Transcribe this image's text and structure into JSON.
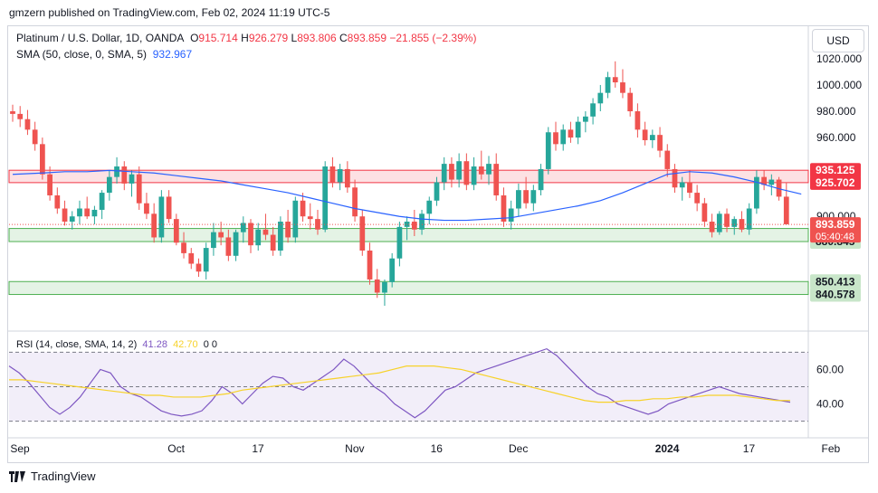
{
  "header": {
    "text": "gmzern published on TradingView.com, Feb 02, 2024 11:19 UTC-5"
  },
  "legend": {
    "symbol": "Platinum / U.S. Dollar, 1D, OANDA",
    "o_label": "O",
    "o": "915.714",
    "h_label": "H",
    "h": "926.279",
    "l_label": "L",
    "l": "893.806",
    "c_label": "C",
    "c": "893.859",
    "change": "−21.855 (−2.39%)",
    "sma_label": "SMA (50, close, 0, SMA, 5)",
    "sma_value": "932.967",
    "rsi_label": "RSI (14, close, SMA, 14, 2)",
    "rsi_value": "41.28",
    "rsi_sma_value": "42.70",
    "rsi_tail": "0 0"
  },
  "currency_button": "USD",
  "footer": {
    "brand": "TradingView"
  },
  "colors": {
    "up": "#26a69a",
    "down": "#ef5350",
    "sma": "#2962ff",
    "rsi": "#7e57c2",
    "rsi_sma": "#f7d22a",
    "resistance": "#f23645",
    "support": "#4caf50"
  },
  "chart_data": [
    {
      "type": "candlestick",
      "title": "Platinum / U.S. Dollar, 1D, OANDA",
      "y_axis": {
        "ticks": [
          "1020.000",
          "1000.000",
          "980.000",
          "960.000",
          "900.000"
        ],
        "range": [
          832,
          1022
        ],
        "currency": "USD"
      },
      "x_axis": {
        "ticks": [
          {
            "label": "Sep",
            "i": 0
          },
          {
            "label": "Oct",
            "i": 21
          },
          {
            "label": "17",
            "i": 32
          },
          {
            "label": "Nov",
            "i": 45
          },
          {
            "label": "16",
            "i": 56
          },
          {
            "label": "Dec",
            "i": 67
          },
          {
            "label": "2024",
            "i": 87
          },
          {
            "label": "17",
            "i": 98
          },
          {
            "label": "Feb",
            "i": 109
          }
        ]
      },
      "resistance_zone": {
        "low": 925.702,
        "high": 935.125,
        "labels": [
          "935.125",
          "925.702"
        ]
      },
      "support_zones": [
        {
          "low": 880.845,
          "high": 890.802,
          "labels": [
            "890.802",
            "880.845"
          ]
        },
        {
          "low": 840.578,
          "high": 850.413,
          "labels": [
            "850.413",
            "840.578"
          ]
        }
      ],
      "last_price": {
        "value": 893.859,
        "label": "893.859",
        "countdown": "05:40:48"
      },
      "candles": [
        [
          980,
          985,
          972,
          978
        ],
        [
          978,
          984,
          968,
          974
        ],
        [
          974,
          981,
          962,
          966
        ],
        [
          966,
          972,
          950,
          955
        ],
        [
          955,
          960,
          928,
          932
        ],
        [
          932,
          938,
          912,
          916
        ],
        [
          916,
          922,
          902,
          906
        ],
        [
          906,
          912,
          893,
          896
        ],
        [
          896,
          904,
          890,
          900
        ],
        [
          900,
          912,
          894,
          906
        ],
        [
          906,
          915,
          898,
          900
        ],
        [
          900,
          908,
          894,
          905
        ],
        [
          905,
          920,
          898,
          918
        ],
        [
          918,
          935,
          912,
          930
        ],
        [
          930,
          945,
          925,
          938
        ],
        [
          938,
          942,
          920,
          925
        ],
        [
          925,
          935,
          915,
          932
        ],
        [
          932,
          938,
          905,
          910
        ],
        [
          910,
          918,
          898,
          902
        ],
        [
          902,
          910,
          880,
          884
        ],
        [
          884,
          920,
          880,
          915
        ],
        [
          915,
          920,
          895,
          898
        ],
        [
          898,
          902,
          878,
          880
        ],
        [
          880,
          888,
          868,
          872
        ],
        [
          872,
          876,
          860,
          864
        ],
        [
          864,
          868,
          854,
          858
        ],
        [
          858,
          880,
          852,
          876
        ],
        [
          876,
          895,
          870,
          888
        ],
        [
          888,
          896,
          878,
          884
        ],
        [
          884,
          890,
          866,
          870
        ],
        [
          870,
          890,
          866,
          888
        ],
        [
          888,
          900,
          880,
          895
        ],
        [
          895,
          898,
          872,
          878
        ],
        [
          878,
          895,
          874,
          890
        ],
        [
          890,
          902,
          882,
          886
        ],
        [
          886,
          892,
          870,
          874
        ],
        [
          874,
          900,
          870,
          896
        ],
        [
          896,
          905,
          880,
          884
        ],
        [
          884,
          915,
          880,
          912
        ],
        [
          912,
          918,
          896,
          900
        ],
        [
          900,
          910,
          890,
          898
        ],
        [
          898,
          905,
          886,
          890
        ],
        [
          890,
          942,
          888,
          938
        ],
        [
          938,
          945,
          922,
          926
        ],
        [
          926,
          940,
          920,
          936
        ],
        [
          936,
          942,
          918,
          922
        ],
        [
          922,
          928,
          896,
          900
        ],
        [
          900,
          905,
          870,
          874
        ],
        [
          874,
          880,
          848,
          852
        ],
        [
          852,
          860,
          838,
          842
        ],
        [
          842,
          852,
          832,
          850
        ],
        [
          850,
          872,
          846,
          868
        ],
        [
          868,
          896,
          862,
          892
        ],
        [
          892,
          900,
          882,
          896
        ],
        [
          896,
          905,
          885,
          890
        ],
        [
          890,
          905,
          886,
          902
        ],
        [
          902,
          915,
          894,
          912
        ],
        [
          912,
          930,
          908,
          926
        ],
        [
          926,
          945,
          920,
          940
        ],
        [
          940,
          945,
          922,
          928
        ],
        [
          928,
          948,
          922,
          942
        ],
        [
          942,
          948,
          920,
          924
        ],
        [
          924,
          945,
          920,
          938
        ],
        [
          938,
          950,
          928,
          932
        ],
        [
          932,
          946,
          924,
          940
        ],
        [
          940,
          948,
          912,
          916
        ],
        [
          916,
          922,
          892,
          896
        ],
        [
          896,
          912,
          890,
          906
        ],
        [
          906,
          925,
          900,
          920
        ],
        [
          920,
          930,
          906,
          910
        ],
        [
          910,
          924,
          904,
          920
        ],
        [
          920,
          940,
          916,
          936
        ],
        [
          936,
          968,
          932,
          964
        ],
        [
          964,
          972,
          950,
          955
        ],
        [
          955,
          970,
          950,
          966
        ],
        [
          966,
          972,
          956,
          960
        ],
        [
          960,
          976,
          955,
          972
        ],
        [
          972,
          980,
          964,
          976
        ],
        [
          976,
          990,
          970,
          986
        ],
        [
          986,
          1000,
          980,
          994
        ],
        [
          994,
          1010,
          990,
          1006
        ],
        [
          1006,
          1018,
          998,
          1002
        ],
        [
          1002,
          1012,
          990,
          994
        ],
        [
          994,
          998,
          976,
          980
        ],
        [
          980,
          986,
          960,
          966
        ],
        [
          966,
          972,
          954,
          958
        ],
        [
          958,
          966,
          952,
          962
        ],
        [
          962,
          968,
          945,
          950
        ],
        [
          950,
          955,
          930,
          936
        ],
        [
          936,
          940,
          918,
          922
        ],
        [
          922,
          930,
          912,
          926
        ],
        [
          926,
          935,
          914,
          918
        ],
        [
          918,
          924,
          904,
          910
        ],
        [
          910,
          914,
          892,
          896
        ],
        [
          896,
          902,
          884,
          888
        ],
        [
          888,
          904,
          886,
          902
        ],
        [
          902,
          906,
          888,
          892
        ],
        [
          892,
          900,
          886,
          898
        ],
        [
          898,
          904,
          888,
          890
        ],
        [
          890,
          910,
          886,
          906
        ],
        [
          906,
          935,
          902,
          930
        ],
        [
          930,
          935,
          920,
          924
        ],
        [
          924,
          932,
          916,
          928
        ],
        [
          928,
          930,
          912,
          915
        ],
        [
          915,
          926,
          894,
          894
        ]
      ],
      "sma": [
        932,
        933,
        934,
        934,
        935,
        934,
        933,
        931,
        929,
        927,
        924,
        921,
        918,
        914,
        910,
        906,
        903,
        900,
        898,
        897,
        897,
        898,
        899,
        902,
        905,
        908,
        912,
        918,
        925,
        932,
        934,
        933,
        930,
        926,
        921,
        917
      ],
      "sma_x": [
        0,
        4,
        7,
        10,
        13,
        16,
        19,
        22,
        25,
        28,
        31,
        34,
        37,
        40,
        43,
        46,
        49,
        52,
        55,
        58,
        61,
        64,
        67,
        70,
        73,
        76,
        79,
        82,
        85,
        88,
        91,
        94,
        97,
        100,
        103,
        106
      ]
    },
    {
      "type": "line",
      "title": "RSI (14, close, SMA, 14, 2)",
      "y_axis": {
        "ticks": [
          "60.00",
          "40.00"
        ],
        "range": [
          24,
          76
        ],
        "bands": [
          30,
          50,
          70
        ]
      },
      "series": [
        {
          "name": "RSI",
          "values": [
            62,
            58,
            52,
            45,
            38,
            34,
            38,
            44,
            52,
            60,
            58,
            50,
            46,
            44,
            40,
            36,
            34,
            33,
            34,
            36,
            42,
            50,
            46,
            40,
            46,
            52,
            56,
            55,
            50,
            48,
            52,
            56,
            60,
            66,
            62,
            56,
            50,
            46,
            40,
            36,
            32,
            36,
            42,
            48,
            50,
            54,
            58,
            60,
            62,
            64,
            66,
            68,
            70,
            72,
            68,
            62,
            56,
            50,
            46,
            44,
            40,
            38,
            36,
            34,
            36,
            40,
            42,
            44,
            46,
            48,
            50,
            48,
            46,
            45,
            44,
            43,
            42,
            41
          ]
        },
        {
          "name": "SMA",
          "values": [
            54,
            54,
            53,
            52,
            51,
            50,
            49,
            48,
            47,
            46,
            45,
            45,
            44,
            44,
            44,
            45,
            46,
            48,
            49,
            50,
            51,
            52,
            53,
            54,
            55,
            56,
            57,
            58,
            60,
            62,
            62,
            62,
            61,
            60,
            58,
            56,
            54,
            52,
            50,
            48,
            46,
            44,
            42,
            41,
            41,
            42,
            42,
            43,
            43,
            44,
            44,
            45,
            45,
            45,
            44,
            43,
            42,
            42
          ]
        }
      ]
    }
  ]
}
